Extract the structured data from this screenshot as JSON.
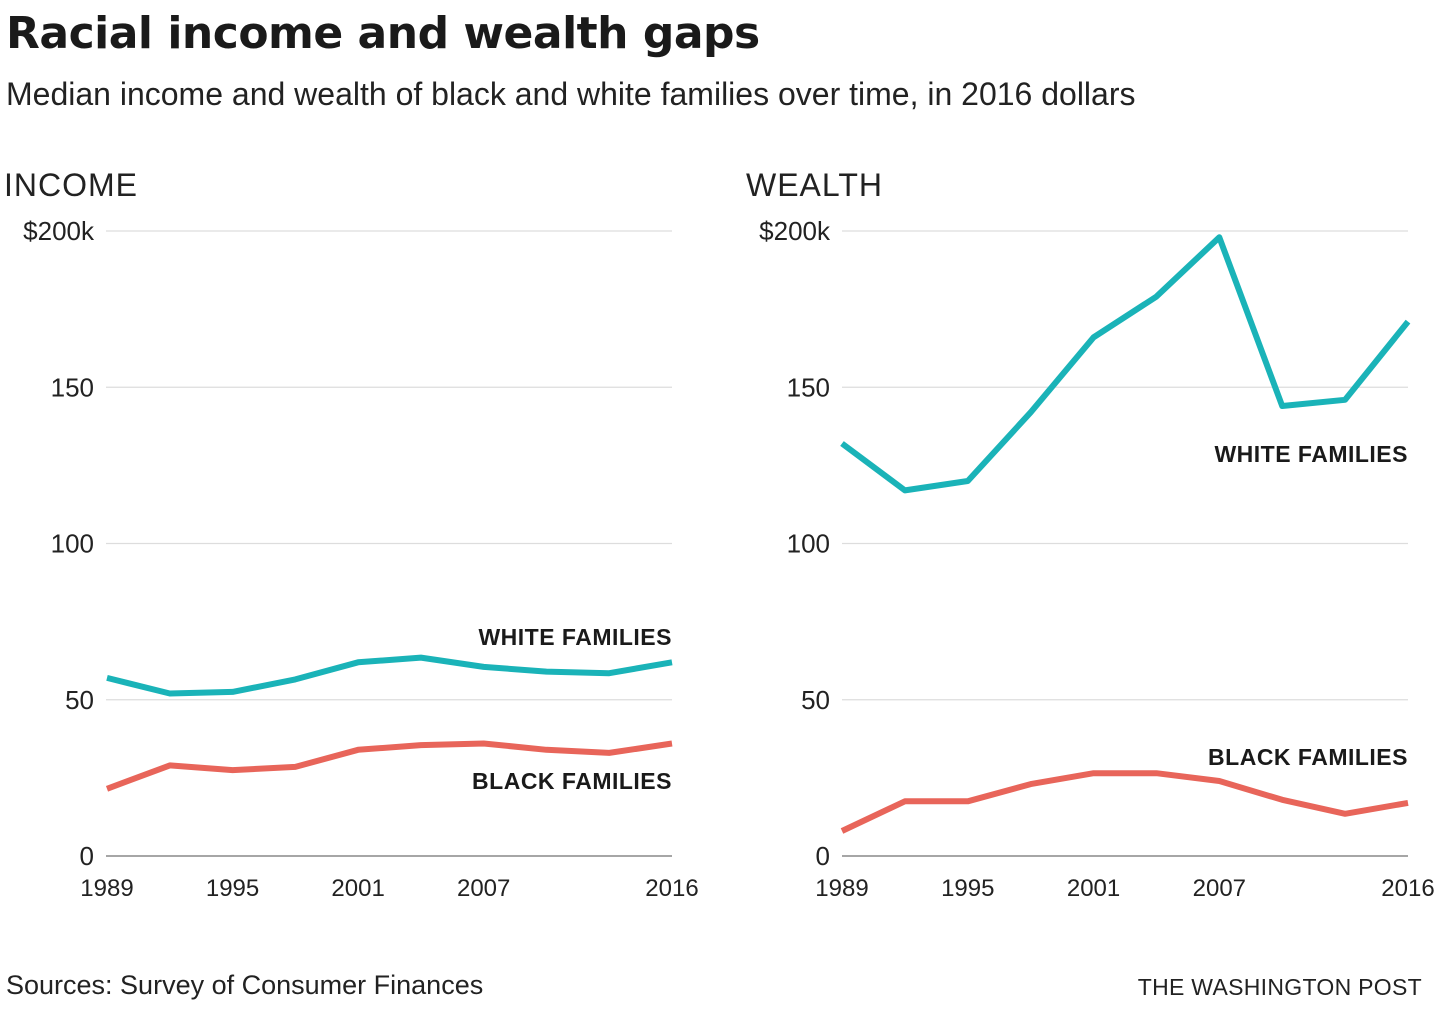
{
  "title": "Racial income and wealth gaps",
  "subtitle": "Median income and wealth of black and white families over time, in 2016 dollars",
  "source": "Sources: Survey of Consumer Finances",
  "credit": "THE WASHINGTON POST",
  "colors": {
    "white_families": "#1ab3b8",
    "black_families": "#e8655a"
  },
  "chart_data": [
    {
      "type": "line",
      "panel_title": "INCOME",
      "x": [
        1989,
        1992,
        1995,
        1998,
        2001,
        2004,
        2007,
        2010,
        2013,
        2016
      ],
      "x_tick_labels": [
        "1989",
        "1995",
        "2001",
        "2007",
        "2016"
      ],
      "y_tick_labels": [
        "$200k",
        "150",
        "100",
        "50",
        "0"
      ],
      "ylim": [
        0,
        200
      ],
      "grid": true,
      "series": [
        {
          "name": "WHITE FAMILIES",
          "key": "white_families",
          "values": [
            57,
            52,
            52.5,
            56.5,
            62,
            63.5,
            60.5,
            59,
            58.5,
            62
          ]
        },
        {
          "name": "BLACK FAMILIES",
          "key": "black_families",
          "values": [
            21.5,
            29,
            27.5,
            28.5,
            34,
            35.5,
            36,
            34,
            33,
            36
          ]
        }
      ]
    },
    {
      "type": "line",
      "panel_title": "WEALTH",
      "x": [
        1989,
        1992,
        1995,
        1998,
        2001,
        2004,
        2007,
        2010,
        2013,
        2016
      ],
      "x_tick_labels": [
        "1989",
        "1995",
        "2001",
        "2007",
        "2016"
      ],
      "y_tick_labels": [
        "$200k",
        "150",
        "100",
        "50",
        "0"
      ],
      "ylim": [
        0,
        200
      ],
      "grid": true,
      "series": [
        {
          "name": "WHITE FAMILIES",
          "key": "white_families",
          "values": [
            132,
            117,
            120,
            142,
            166,
            179,
            198,
            144,
            146,
            171
          ]
        },
        {
          "name": "BLACK FAMILIES",
          "key": "black_families",
          "values": [
            8,
            17.5,
            17.5,
            23,
            26.5,
            26.5,
            24,
            18,
            13.5,
            17
          ]
        }
      ]
    }
  ]
}
